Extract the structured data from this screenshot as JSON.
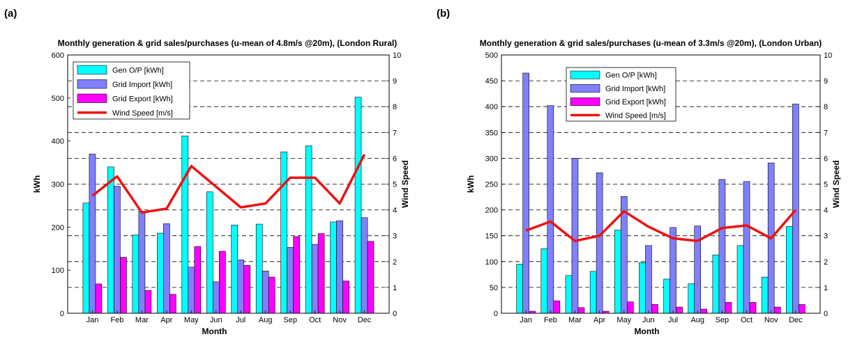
{
  "colors": {
    "gen": "#00ffff",
    "import": "#8080ff",
    "export": "#ff00ff",
    "wind": "#ee1111"
  },
  "chart_data": [
    {
      "panel_label": "(a)",
      "type": "bar",
      "title": "Monthly generation & grid sales/purchases (u-mean of 4.8m/s @20m), (London Rural)",
      "xlabel": "Month",
      "ylabel": "kWh",
      "y2label": "Wind Speed",
      "categories": [
        "Jan",
        "Feb",
        "Mar",
        "Apr",
        "May",
        "Jun",
        "Jul",
        "Aug",
        "Sep",
        "Oct",
        "Nov",
        "Dec"
      ],
      "ylim": [
        0,
        600
      ],
      "yticks": [
        0,
        100,
        200,
        300,
        400,
        500,
        600
      ],
      "y2lim": [
        0,
        10
      ],
      "y2ticks": [
        0,
        1,
        2,
        3,
        4,
        5,
        6,
        7,
        8,
        9,
        10
      ],
      "grid": "dashed horizontal at right-axis ticks",
      "legend_position": "top-left",
      "series": [
        {
          "name": "Gen O/P [kWh]",
          "values": [
            256,
            340,
            182,
            186,
            412,
            282,
            205,
            207,
            375,
            389,
            212,
            502
          ]
        },
        {
          "name": "Grid Import [kWh]",
          "values": [
            370,
            295,
            237,
            208,
            107,
            73,
            124,
            98,
            153,
            160,
            215,
            222
          ]
        },
        {
          "name": "Grid Export [kWh]",
          "values": [
            68,
            130,
            53,
            44,
            155,
            144,
            111,
            84,
            178,
            185,
            75,
            167
          ]
        }
      ],
      "line_series": {
        "name": "Wind Speed [m/s]",
        "axis": "right",
        "values": [
          4.55,
          5.3,
          3.9,
          4.05,
          5.7,
          4.9,
          4.1,
          4.25,
          5.25,
          5.25,
          4.25,
          6.15
        ]
      }
    },
    {
      "panel_label": "(b)",
      "type": "bar",
      "title": "Monthly generation & grid sales/purchases (u-mean of 3.3m/s @20m), (London Urban)",
      "xlabel": "Month",
      "ylabel": "kWh",
      "y2label": "Wind Speed",
      "categories": [
        "Jan",
        "Feb",
        "Mar",
        "Apr",
        "May",
        "Jun",
        "Jul",
        "Aug",
        "Sep",
        "Oct",
        "Nov",
        "Dec"
      ],
      "ylim": [
        0,
        500
      ],
      "yticks": [
        0,
        50,
        100,
        150,
        200,
        250,
        300,
        350,
        400,
        450,
        500
      ],
      "y2lim": [
        0,
        10
      ],
      "y2ticks": [
        0,
        1,
        2,
        3,
        4,
        5,
        6,
        7,
        8,
        9,
        10
      ],
      "grid": "dashed horizontal at right-axis ticks",
      "legend_position": "top-center",
      "series": [
        {
          "name": "Gen O/P [kWh]",
          "values": [
            95,
            125,
            73,
            81,
            161,
            98,
            66,
            57,
            113,
            131,
            70,
            168
          ]
        },
        {
          "name": "Grid Import [kWh]",
          "values": [
            465,
            402,
            300,
            272,
            226,
            131,
            166,
            169,
            259,
            255,
            291,
            405
          ]
        },
        {
          "name": "Grid Export [kWh]",
          "values": [
            4,
            24,
            11,
            4,
            22,
            17,
            12,
            8,
            21,
            21,
            12,
            17
          ]
        }
      ],
      "line_series": {
        "name": "Wind Speed [m/s]",
        "axis": "right",
        "values": [
          3.2,
          3.55,
          2.8,
          3.0,
          3.95,
          3.35,
          2.9,
          2.8,
          3.3,
          3.4,
          2.9,
          4.0
        ]
      }
    }
  ]
}
